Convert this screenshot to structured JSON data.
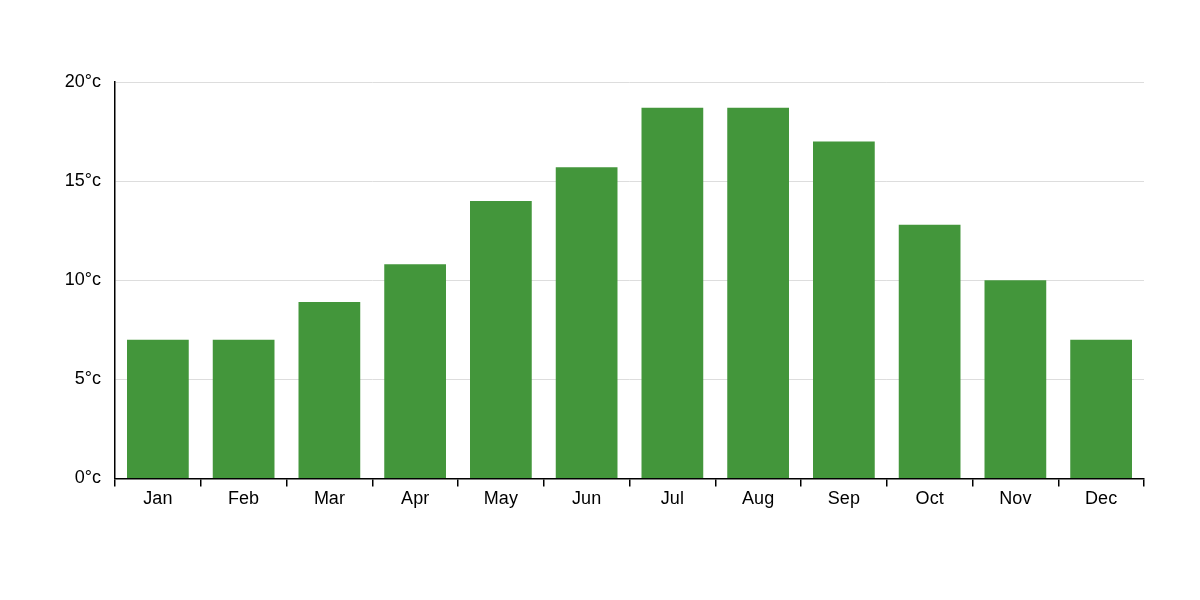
{
  "chart_data": {
    "type": "bar",
    "categories": [
      "Jan",
      "Feb",
      "Mar",
      "Apr",
      "May",
      "Jun",
      "Jul",
      "Aug",
      "Sep",
      "Oct",
      "Nov",
      "Dec"
    ],
    "values": [
      7,
      7,
      8.9,
      10.8,
      14,
      15.7,
      18.7,
      18.7,
      17,
      12.8,
      10,
      7
    ],
    "color": "#43963b",
    "ylim": [
      0,
      20
    ],
    "yticks": [
      {
        "value": 0,
        "label": "0°c"
      },
      {
        "value": 5,
        "label": "5°c"
      },
      {
        "value": 10,
        "label": "10°c"
      },
      {
        "value": 15,
        "label": "15°c"
      },
      {
        "value": 20,
        "label": "20°c"
      }
    ],
    "grid": true
  }
}
